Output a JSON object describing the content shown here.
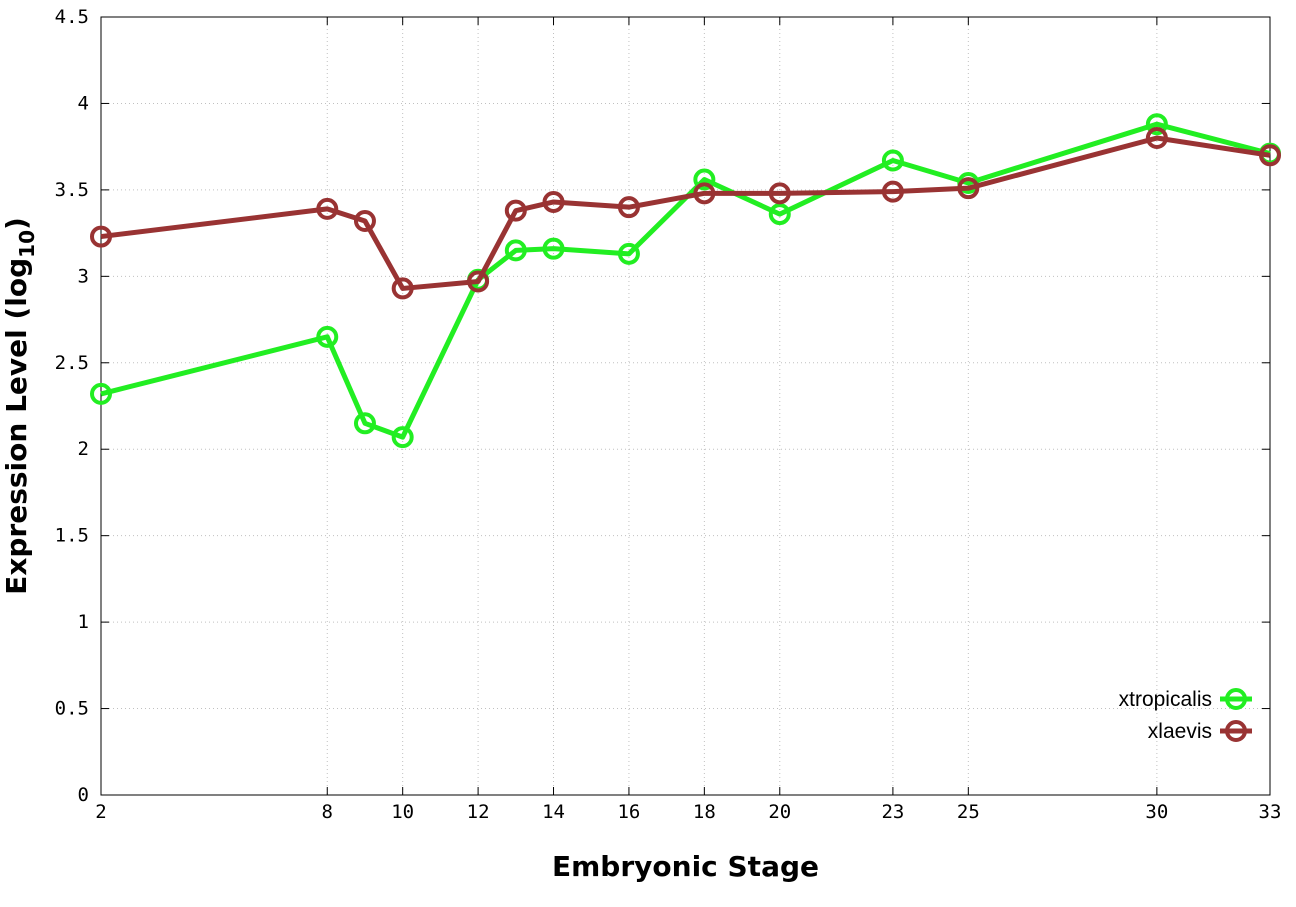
{
  "chart_data": {
    "type": "line",
    "title": "",
    "xlabel": "Embryonic Stage",
    "ylabel_main": "Expression Level (log",
    "ylabel_sub": "10",
    "ylabel_close": ")",
    "x": [
      2,
      8,
      9,
      10,
      12,
      13,
      14,
      16,
      18,
      20,
      23,
      25,
      30,
      33
    ],
    "x_ticks": [
      2,
      8,
      10,
      12,
      14,
      16,
      18,
      20,
      23,
      25,
      30,
      33
    ],
    "x_tick_labels": [
      "2",
      "8",
      "10",
      "12",
      "14",
      "16",
      "18",
      "20",
      "23",
      "25",
      "30",
      "33"
    ],
    "xlim": [
      2,
      33
    ],
    "y_ticks": [
      0,
      0.5,
      1,
      1.5,
      2,
      2.5,
      3,
      3.5,
      4,
      4.5
    ],
    "y_tick_labels": [
      "0",
      "0.5",
      "1",
      "1.5",
      "2",
      "2.5",
      "3",
      "3.5",
      "4",
      "4.5"
    ],
    "ylim": [
      0,
      4.5
    ],
    "grid": true,
    "legend_position": "bottom-right",
    "series": [
      {
        "name": "xtropicalis",
        "color": "#22ee22",
        "values": [
          2.32,
          2.65,
          2.15,
          2.07,
          2.98,
          3.15,
          3.16,
          3.13,
          3.56,
          3.36,
          3.67,
          3.54,
          3.88,
          3.71
        ]
      },
      {
        "name": "xlaevis",
        "color": "#993333",
        "values": [
          3.23,
          3.39,
          3.32,
          2.93,
          2.97,
          3.38,
          3.43,
          3.4,
          3.48,
          3.48,
          3.49,
          3.51,
          3.8,
          3.7
        ]
      }
    ]
  }
}
